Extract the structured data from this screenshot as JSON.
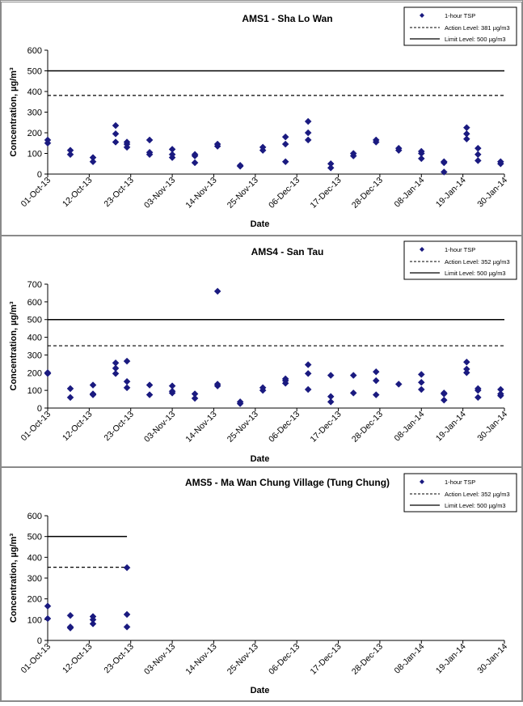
{
  "colors": {
    "marker": "#1a1a80",
    "limit": "#000000",
    "action": "#000000",
    "frame": "#8a8a8a",
    "background": "#ffffff"
  },
  "chart_data": [
    {
      "type": "scatter",
      "title": "AMS1 - Sha Lo Wan",
      "xlabel": "Date",
      "ylabel": "Concentration, µg/m³",
      "ylim": [
        0,
        600
      ],
      "yticks": [
        0,
        100,
        200,
        300,
        400,
        500,
        600
      ],
      "xticks": [
        "01-Oct-13",
        "12-Oct-13",
        "23-Oct-13",
        "03-Nov-13",
        "14-Nov-13",
        "25-Nov-13",
        "06-Dec-13",
        "17-Dec-13",
        "28-Dec-13",
        "08-Jan-14",
        "19-Jan-14",
        "30-Jan-14"
      ],
      "x_range": [
        "2013-10-01",
        "2014-01-30"
      ],
      "legend": {
        "position": "top-right",
        "marker": "1-hour TSP",
        "action": "Action Level: 381 µg/m3",
        "limit": "Limit Level: 500 µg/m3"
      },
      "action_level": 381,
      "limit_level": 500,
      "line_end": "2014-01-30",
      "series": [
        {
          "name": "1-hour TSP",
          "points": [
            [
              "2013-10-01",
              150
            ],
            [
              "2013-10-01",
              165
            ],
            [
              "2013-10-07",
              95
            ],
            [
              "2013-10-07",
              115
            ],
            [
              "2013-10-13",
              60
            ],
            [
              "2013-10-13",
              80
            ],
            [
              "2013-10-19",
              155
            ],
            [
              "2013-10-19",
              195
            ],
            [
              "2013-10-19",
              235
            ],
            [
              "2013-10-22",
              130
            ],
            [
              "2013-10-22",
              145
            ],
            [
              "2013-10-22",
              155
            ],
            [
              "2013-10-28",
              95
            ],
            [
              "2013-10-28",
              105
            ],
            [
              "2013-10-28",
              165
            ],
            [
              "2013-11-03",
              80
            ],
            [
              "2013-11-03",
              95
            ],
            [
              "2013-11-03",
              120
            ],
            [
              "2013-11-09",
              55
            ],
            [
              "2013-11-09",
              88
            ],
            [
              "2013-11-09",
              95
            ],
            [
              "2013-11-15",
              135
            ],
            [
              "2013-11-15",
              145
            ],
            [
              "2013-11-21",
              38
            ],
            [
              "2013-11-21",
              42
            ],
            [
              "2013-11-27",
              115
            ],
            [
              "2013-11-27",
              130
            ],
            [
              "2013-12-03",
              60
            ],
            [
              "2013-12-03",
              145
            ],
            [
              "2013-12-03",
              180
            ],
            [
              "2013-12-09",
              165
            ],
            [
              "2013-12-09",
              200
            ],
            [
              "2013-12-09",
              255
            ],
            [
              "2013-12-15",
              30
            ],
            [
              "2013-12-15",
              50
            ],
            [
              "2013-12-21",
              88
            ],
            [
              "2013-12-21",
              100
            ],
            [
              "2013-12-27",
              155
            ],
            [
              "2013-12-27",
              165
            ],
            [
              "2014-01-02",
              115
            ],
            [
              "2014-01-02",
              125
            ],
            [
              "2014-01-08",
              75
            ],
            [
              "2014-01-08",
              100
            ],
            [
              "2014-01-08",
              110
            ],
            [
              "2014-01-14",
              10
            ],
            [
              "2014-01-14",
              55
            ],
            [
              "2014-01-14",
              60
            ],
            [
              "2014-01-20",
              170
            ],
            [
              "2014-01-20",
              195
            ],
            [
              "2014-01-20",
              225
            ],
            [
              "2014-01-23",
              65
            ],
            [
              "2014-01-23",
              95
            ],
            [
              "2014-01-23",
              125
            ],
            [
              "2014-01-29",
              50
            ],
            [
              "2014-01-29",
              60
            ]
          ]
        }
      ]
    },
    {
      "type": "scatter",
      "title": "AMS4 - San Tau",
      "xlabel": "Date",
      "ylabel": "Concentration, µg/m³",
      "ylim": [
        0,
        700
      ],
      "yticks": [
        0,
        100,
        200,
        300,
        400,
        500,
        600,
        700
      ],
      "xticks": [
        "01-Oct-13",
        "12-Oct-13",
        "23-Oct-13",
        "03-Nov-13",
        "14-Nov-13",
        "25-Nov-13",
        "06-Dec-13",
        "17-Dec-13",
        "28-Dec-13",
        "08-Jan-14",
        "19-Jan-14",
        "30-Jan-14"
      ],
      "x_range": [
        "2013-10-01",
        "2014-01-30"
      ],
      "legend": {
        "position": "top-right",
        "marker": "1-hour TSP",
        "action": "Action Level: 352 µg/m3",
        "limit": "Limit Level: 500 µg/m3"
      },
      "action_level": 352,
      "limit_level": 500,
      "line_end": "2014-01-30",
      "series": [
        {
          "name": "1-hour TSP",
          "points": [
            [
              "2013-10-01",
              195
            ],
            [
              "2013-10-01",
              200
            ],
            [
              "2013-10-07",
              60
            ],
            [
              "2013-10-07",
              110
            ],
            [
              "2013-10-13",
              75
            ],
            [
              "2013-10-13",
              80
            ],
            [
              "2013-10-13",
              130
            ],
            [
              "2013-10-19",
              195
            ],
            [
              "2013-10-19",
              225
            ],
            [
              "2013-10-19",
              255
            ],
            [
              "2013-10-22",
              115
            ],
            [
              "2013-10-22",
              150
            ],
            [
              "2013-10-22",
              265
            ],
            [
              "2013-10-28",
              75
            ],
            [
              "2013-10-28",
              130
            ],
            [
              "2013-11-03",
              85
            ],
            [
              "2013-11-03",
              95
            ],
            [
              "2013-11-03",
              125
            ],
            [
              "2013-11-09",
              55
            ],
            [
              "2013-11-09",
              80
            ],
            [
              "2013-11-15",
              125
            ],
            [
              "2013-11-15",
              135
            ],
            [
              "2013-11-15",
              660
            ],
            [
              "2013-11-21",
              25
            ],
            [
              "2013-11-21",
              35
            ],
            [
              "2013-11-27",
              100
            ],
            [
              "2013-11-27",
              115
            ],
            [
              "2013-12-03",
              140
            ],
            [
              "2013-12-03",
              155
            ],
            [
              "2013-12-03",
              165
            ],
            [
              "2013-12-09",
              105
            ],
            [
              "2013-12-09",
              195
            ],
            [
              "2013-12-09",
              245
            ],
            [
              "2013-12-15",
              35
            ],
            [
              "2013-12-15",
              65
            ],
            [
              "2013-12-15",
              185
            ],
            [
              "2013-12-21",
              85
            ],
            [
              "2013-12-21",
              185
            ],
            [
              "2013-12-27",
              75
            ],
            [
              "2013-12-27",
              155
            ],
            [
              "2013-12-27",
              205
            ],
            [
              "2014-01-02",
              135
            ],
            [
              "2014-01-08",
              105
            ],
            [
              "2014-01-08",
              145
            ],
            [
              "2014-01-08",
              190
            ],
            [
              "2014-01-14",
              45
            ],
            [
              "2014-01-14",
              80
            ],
            [
              "2014-01-14",
              85
            ],
            [
              "2014-01-20",
              200
            ],
            [
              "2014-01-20",
              220
            ],
            [
              "2014-01-20",
              260
            ],
            [
              "2014-01-23",
              60
            ],
            [
              "2014-01-23",
              100
            ],
            [
              "2014-01-23",
              110
            ],
            [
              "2014-01-29",
              70
            ],
            [
              "2014-01-29",
              80
            ],
            [
              "2014-01-29",
              105
            ]
          ]
        }
      ]
    },
    {
      "type": "scatter",
      "title": "AMS5 - Ma Wan Chung Village (Tung Chung)",
      "xlabel": "Date",
      "ylabel": "Concentration, µg/m³",
      "ylim": [
        0,
        600
      ],
      "yticks": [
        0,
        100,
        200,
        300,
        400,
        500,
        600
      ],
      "xticks": [
        "01-Oct-13",
        "12-Oct-13",
        "23-Oct-13",
        "03-Nov-13",
        "14-Nov-13",
        "25-Nov-13",
        "06-Dec-13",
        "17-Dec-13",
        "28-Dec-13",
        "08-Jan-14",
        "19-Jan-14",
        "30-Jan-14"
      ],
      "x_range": [
        "2013-10-01",
        "2014-01-30"
      ],
      "legend": {
        "position": "top-right",
        "marker": "1-hour TSP",
        "action": "Action Level: 352 µg/m3",
        "limit": "Limit Level: 500 µg/m3"
      },
      "action_level": 352,
      "limit_level": 500,
      "line_end": "2013-10-22",
      "series": [
        {
          "name": "1-hour TSP",
          "points": [
            [
              "2013-10-01",
              105
            ],
            [
              "2013-10-01",
              165
            ],
            [
              "2013-10-07",
              60
            ],
            [
              "2013-10-07",
              65
            ],
            [
              "2013-10-07",
              120
            ],
            [
              "2013-10-13",
              80
            ],
            [
              "2013-10-13",
              100
            ],
            [
              "2013-10-13",
              115
            ],
            [
              "2013-10-22",
              65
            ],
            [
              "2013-10-22",
              125
            ],
            [
              "2013-10-22",
              350
            ]
          ]
        }
      ]
    }
  ]
}
